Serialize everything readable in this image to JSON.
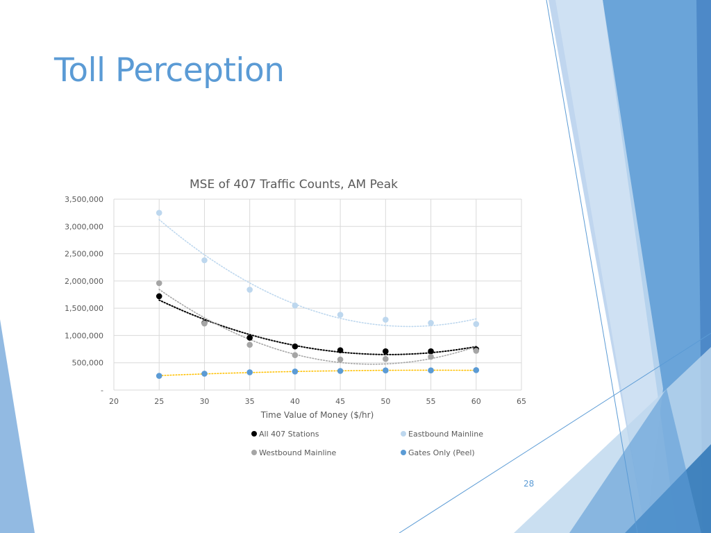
{
  "slide": {
    "title": "Toll Perception",
    "page_number": "28",
    "accent_color": "#5b9bd5"
  },
  "chart_data": {
    "type": "scatter",
    "title": "MSE of 407 Traffic Counts, AM Peak",
    "xlabel": "Time Value of Money ($/hr)",
    "ylabel": "",
    "xlim": [
      20,
      65
    ],
    "ylim": [
      0,
      3500000
    ],
    "x_ticks": [
      "20",
      "25",
      "30",
      "35",
      "40",
      "45",
      "50",
      "55",
      "60",
      "65"
    ],
    "y_ticks": [
      "-",
      "500,000",
      "1,000,000",
      "1,500,000",
      "2,000,000",
      "2,500,000",
      "3,000,000",
      "3,500,000"
    ],
    "grid": true,
    "legend_position": "bottom",
    "trendline": "polynomial (dotted)",
    "x": [
      25,
      30,
      35,
      40,
      45,
      50,
      55,
      60
    ],
    "series": [
      {
        "name": "All 407 Stations",
        "color": "#000000",
        "values": [
          1720000,
          1230000,
          960000,
          800000,
          730000,
          710000,
          710000,
          745000
        ]
      },
      {
        "name": "Eastbound Mainline",
        "color": "#bdd7ee",
        "values": [
          3250000,
          2380000,
          1840000,
          1550000,
          1380000,
          1290000,
          1230000,
          1210000
        ]
      },
      {
        "name": "Westbound Mainline",
        "color": "#a5a5a5",
        "values": [
          1960000,
          1220000,
          830000,
          640000,
          560000,
          570000,
          610000,
          720000
        ]
      },
      {
        "name": "Gates Only (Peel)",
        "color": "#5b9bd5",
        "trend_color": "#ffc000",
        "values": [
          260000,
          300000,
          325000,
          340000,
          350000,
          360000,
          360000,
          365000
        ]
      }
    ]
  }
}
